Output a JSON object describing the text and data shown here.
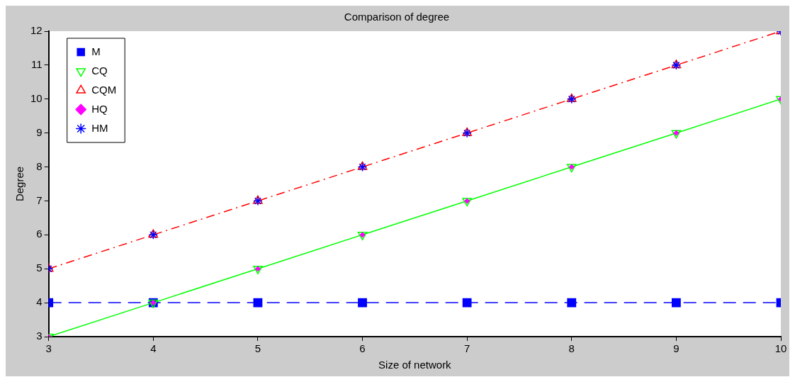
{
  "chart_data": {
    "type": "line",
    "title": "Comparison of degree",
    "xlabel": "Size of network",
    "ylabel": "Degree",
    "x": [
      3,
      4,
      5,
      6,
      7,
      8,
      9,
      10
    ],
    "xlim": [
      3,
      10
    ],
    "xticks": [
      3,
      4,
      5,
      6,
      7,
      8,
      9,
      10
    ],
    "ylim": [
      3,
      12
    ],
    "yticks": [
      3,
      4,
      5,
      6,
      7,
      8,
      9,
      10,
      11,
      12
    ],
    "grid": false,
    "legend": "top left",
    "series": [
      {
        "name": "M",
        "color": "#0000ff",
        "values": [
          4,
          4,
          4,
          4,
          4,
          4,
          4,
          4
        ],
        "marker": "square",
        "line_style": "dashed"
      },
      {
        "name": "CQ",
        "color": "#00ff00",
        "values": [
          3,
          4,
          5,
          6,
          7,
          8,
          9,
          10
        ],
        "marker": "triangle-down",
        "line_style": "solid"
      },
      {
        "name": "CQM",
        "color": "#ff0000",
        "values": [
          5,
          6,
          7,
          8,
          9,
          10,
          11,
          12
        ],
        "marker": "triangle",
        "line_style": "dashdot"
      },
      {
        "name": "HQ",
        "color": "#ff00ff",
        "type": "scatter",
        "values": [
          3,
          4,
          5,
          6,
          7,
          8,
          9,
          10
        ],
        "marker": "diamond"
      },
      {
        "name": "HM",
        "color": "#0000ff",
        "type": "scatter",
        "values": [
          5,
          6,
          7,
          8,
          9,
          10,
          11,
          12
        ],
        "marker": "cross"
      }
    ]
  }
}
